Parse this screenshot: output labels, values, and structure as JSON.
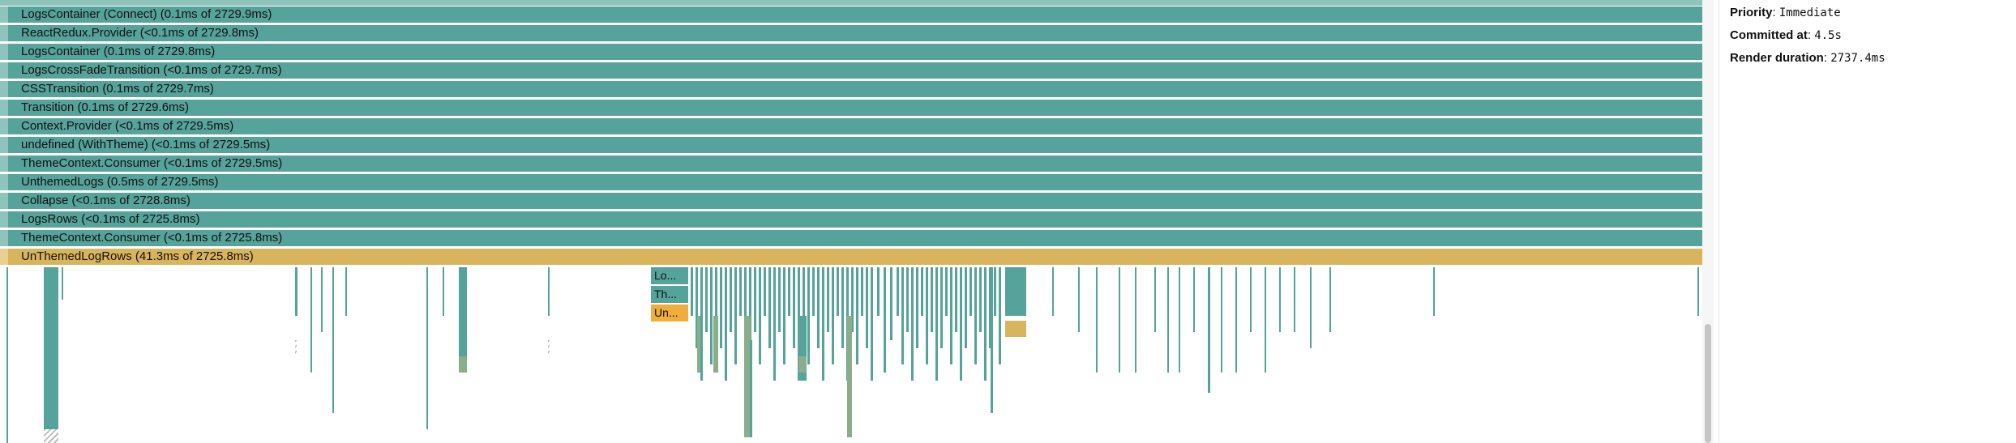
{
  "flamegraph": {
    "rows": [
      {
        "label": "LogsContainer (Connect) (0.1ms of 2729.9ms)",
        "highlight": false
      },
      {
        "label": "ReactRedux.Provider (<0.1ms of 2729.8ms)",
        "highlight": false
      },
      {
        "label": "LogsContainer (0.1ms of 2729.8ms)",
        "highlight": false
      },
      {
        "label": "LogsCrossFadeTransition (<0.1ms of 2729.7ms)",
        "highlight": false
      },
      {
        "label": "CSSTransition (0.1ms of 2729.7ms)",
        "highlight": false
      },
      {
        "label": "Transition (0.1ms of 2729.6ms)",
        "highlight": false
      },
      {
        "label": "Context.Provider (<0.1ms of 2729.5ms)",
        "highlight": false
      },
      {
        "label": "undefined (WithTheme) (<0.1ms of 2729.5ms)",
        "highlight": false
      },
      {
        "label": "ThemeContext.Consumer (<0.1ms of 2729.5ms)",
        "highlight": false
      },
      {
        "label": "UnthemedLogs (0.5ms of 2729.5ms)",
        "highlight": false
      },
      {
        "label": "Collapse (<0.1ms of 2728.8ms)",
        "highlight": false
      },
      {
        "label": "LogsRows (<0.1ms of 2725.8ms)",
        "highlight": false
      },
      {
        "label": "ThemeContext.Consumer (<0.1ms of 2725.8ms)",
        "highlight": false
      },
      {
        "label": "UnThemedLogRows (41.3ms of 2725.8ms)",
        "highlight": true
      }
    ],
    "mini_labels": [
      "Lo...",
      "Th...",
      "Un..."
    ],
    "colors": {
      "teal": "#55a39a",
      "yellow": "#d8b55c",
      "orange": "#efad3c"
    }
  },
  "sidebar": {
    "priority_label": "Priority",
    "priority_value": "Immediate",
    "committed_label": "Committed at",
    "committed_value": "4.5s",
    "duration_label": "Render duration",
    "duration_value": "2737.4ms"
  }
}
